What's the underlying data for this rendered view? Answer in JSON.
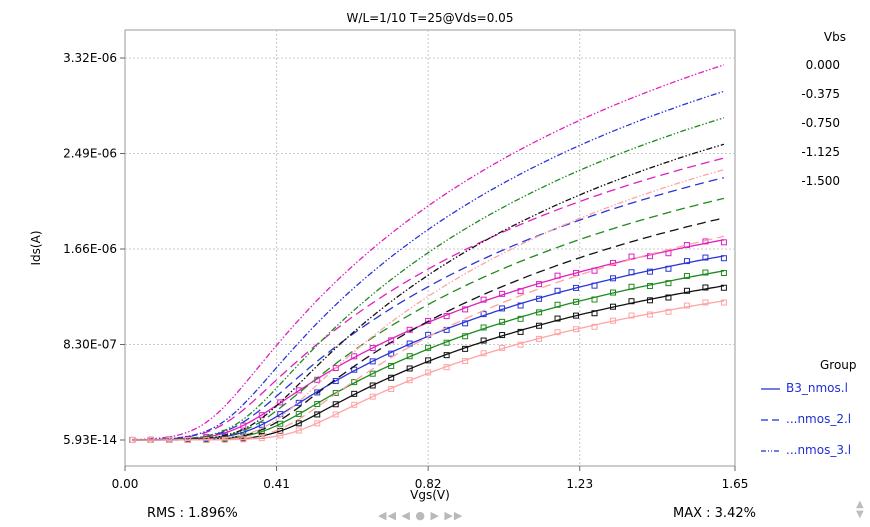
{
  "chart_data": {
    "type": "line",
    "title": "W/L=1/10  T=25@Vds=0.05",
    "xlabel": "Vgs(V)",
    "ylabel": "Ids(A)",
    "xlim": [
      0,
      1.65
    ],
    "ylim": [
      0,
      3.32e-06
    ],
    "x_ticks": [
      "0.00",
      "0.41",
      "0.82",
      "1.23",
      "1.65"
    ],
    "y_ticks": [
      "5.93E-14",
      "8.30E-07",
      "1.66E-06",
      "2.49E-06",
      "3.32E-06"
    ],
    "grid": true,
    "vbs_legend_title": "Vbs",
    "vbs": [
      {
        "label": "0.000",
        "color": "#e020c0",
        "b3_max": 1.74e-06,
        "nmos2_max": 2.45e-06,
        "nmos3_max": 3.26e-06,
        "onset": 0.3
      },
      {
        "label": "-0.375",
        "color": "#2a35d8",
        "b3_max": 1.6e-06,
        "nmos2_max": 2.28e-06,
        "nmos3_max": 3.03e-06,
        "onset": 0.34
      },
      {
        "label": "-0.750",
        "color": "#1e8a1e",
        "b3_max": 1.47e-06,
        "nmos2_max": 2.1e-06,
        "nmos3_max": 2.8e-06,
        "onset": 0.38
      },
      {
        "label": "-1.125",
        "color": "#111111",
        "b3_max": 1.34e-06,
        "nmos2_max": 1.93e-06,
        "nmos3_max": 2.57e-06,
        "onset": 0.42
      },
      {
        "label": "-1.500",
        "color": "#ffa3a3",
        "b3_max": 1.21e-06,
        "nmos2_max": 1.77e-06,
        "nmos3_max": 2.35e-06,
        "onset": 0.46
      }
    ],
    "group_legend_title": "Group",
    "groups": [
      {
        "label": "B3_nmos.l",
        "style": "solid"
      },
      {
        "label": "...nmos_2.l",
        "style": "dash"
      },
      {
        "label": "...nmos_3.l",
        "style": "dashdotdot"
      }
    ]
  },
  "footer": {
    "rms": "RMS : 1.896%",
    "max": "MAX : 3.42%"
  },
  "nav_glyphs": "◀◀ ◀ ● ▶ ▶▶",
  "spin_up": "▲",
  "spin_down": "▼"
}
